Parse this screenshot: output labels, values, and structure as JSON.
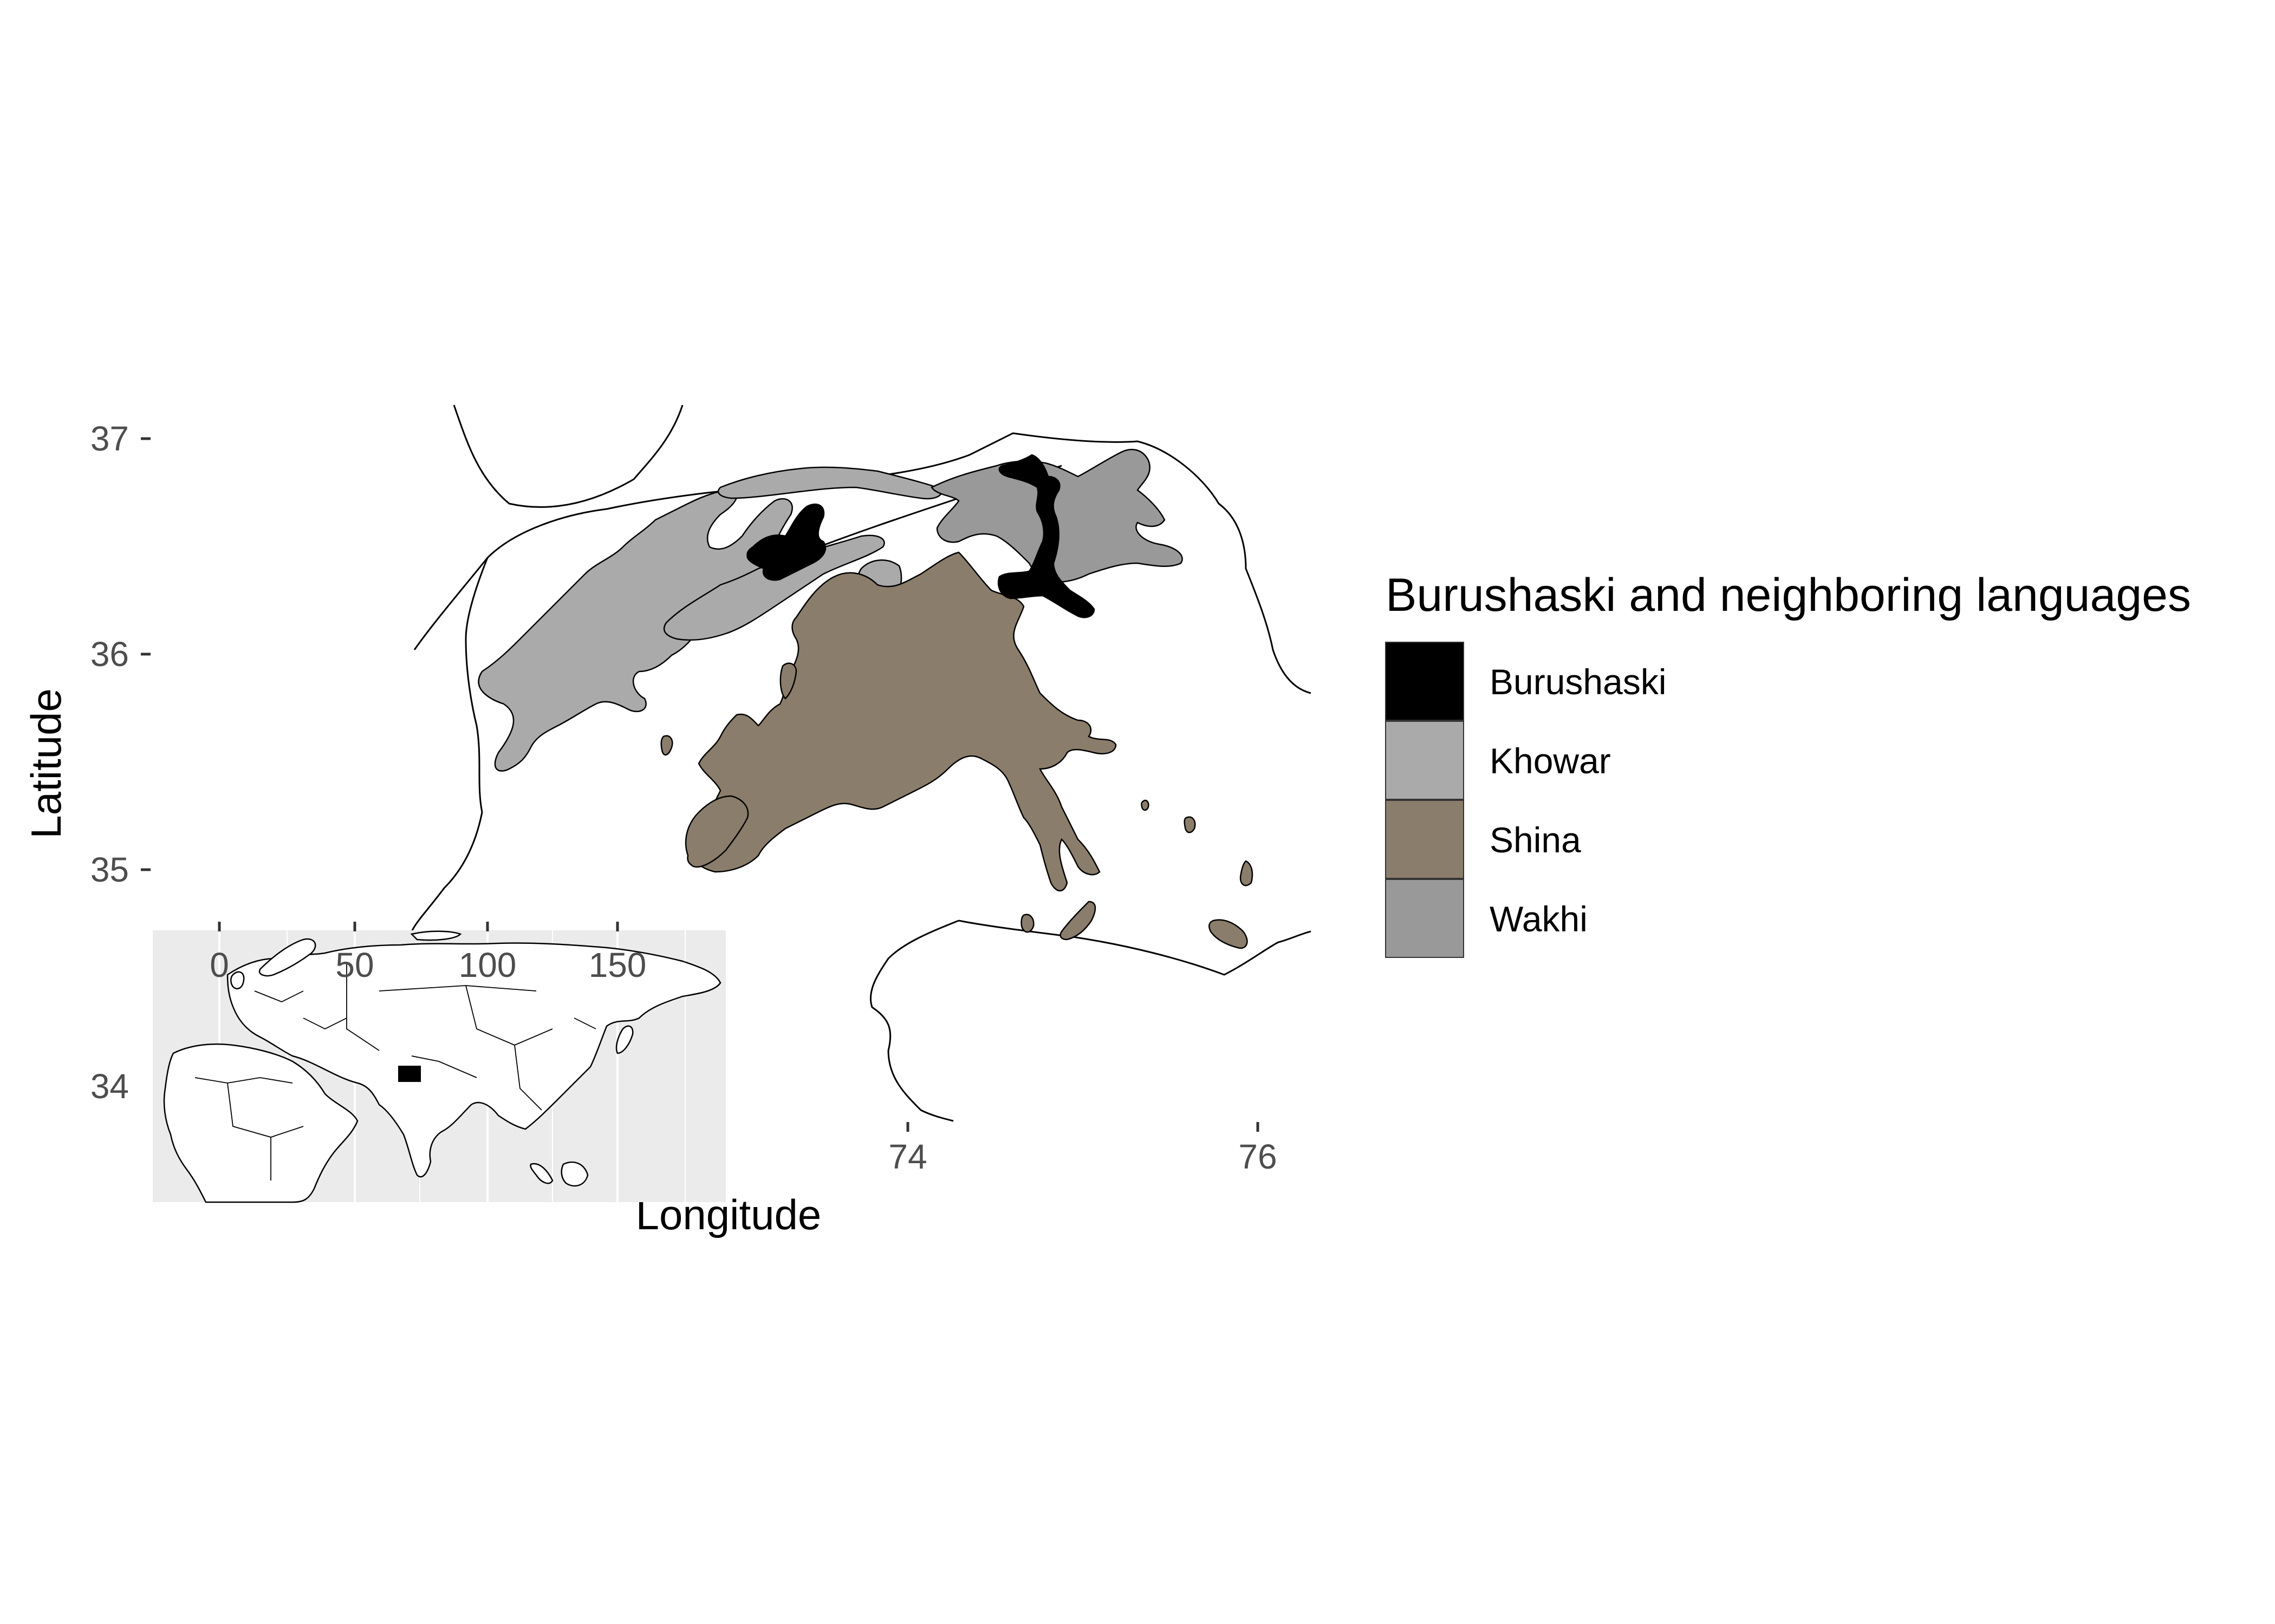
{
  "map": {
    "axes": {
      "xlabel": "Longitude",
      "ylabel": "Latitude",
      "x_ticks": [
        "74",
        "76"
      ],
      "y_ticks": [
        "37",
        "36",
        "35",
        "34"
      ]
    },
    "legend": {
      "title": "Burushaski and neighboring languages",
      "items": [
        {
          "label": "Burushaski",
          "color": "#000000"
        },
        {
          "label": "Khowar",
          "color": "#aaaaaa"
        },
        {
          "label": "Shina",
          "color": "#8b7d6b"
        },
        {
          "label": "Wakhi",
          "color": "#999999"
        }
      ]
    },
    "inset": {
      "x_ticks": [
        "0",
        "50",
        "100",
        "150"
      ],
      "panel_color": "#ebebeb",
      "highlight_color": "#000000"
    }
  },
  "chart_data": {
    "type": "map",
    "xlabel": "Longitude",
    "ylabel": "Latitude",
    "xlim": [
      71.2,
      76.3
    ],
    "ylim": [
      33.5,
      37.2
    ],
    "x_ticks": [
      74,
      76
    ],
    "y_ticks": [
      34,
      35,
      36,
      37
    ],
    "series": [
      {
        "name": "Burushaski",
        "color": "#000000"
      },
      {
        "name": "Khowar",
        "color": "#aaaaaa"
      },
      {
        "name": "Shina",
        "color": "#8b7d6b"
      },
      {
        "name": "Wakhi",
        "color": "#999999"
      }
    ],
    "legend_position": "right",
    "inset": {
      "x_ticks": [
        0,
        50,
        100,
        150
      ],
      "position": "bottom-left"
    }
  }
}
